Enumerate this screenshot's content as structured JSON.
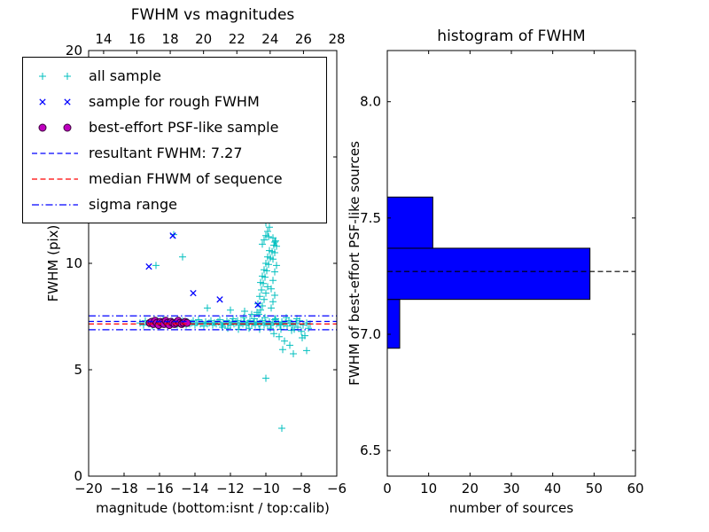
{
  "figure": {
    "background": "#ffffff"
  },
  "legend": {
    "entries": [
      {
        "label": "all sample",
        "marker": "plus",
        "color": "#00bfbf"
      },
      {
        "label": "sample for rough FWHM",
        "marker": "x",
        "color": "#0000ff"
      },
      {
        "label": "best-effort PSF-like sample",
        "marker": "circle",
        "color": "#bf00bf",
        "edge": "#3a003a"
      },
      {
        "label": "resultant FWHM: 7.27",
        "marker": "dashed-line",
        "color": "#0000ff"
      },
      {
        "label": "median FHWM of sequence",
        "marker": "dashed-line",
        "color": "#ff0000"
      },
      {
        "label": "sigma range",
        "marker": "dashdot-line",
        "color": "#0000ff"
      }
    ]
  },
  "chart_data": [
    {
      "type": "scatter",
      "title": "FWHM vs magnitudes",
      "xlabel": "magnitude (bottom:isnt / top:calib)",
      "ylabel": "FWHM (pix)",
      "xlim": [
        -20,
        -6
      ],
      "ylim": [
        0,
        20
      ],
      "xticks_bottom": {
        "values": [
          -20,
          -18,
          -16,
          -14,
          -12,
          -10,
          -8,
          -6
        ],
        "labels": [
          "−20",
          "−18",
          "−16",
          "−14",
          "−12",
          "−10",
          "−8",
          "−6"
        ]
      },
      "xticks_top": {
        "range": [
          13.1,
          28
        ],
        "values": [
          14,
          16,
          18,
          20,
          22,
          24,
          26,
          28
        ],
        "labels": [
          "14",
          "16",
          "18",
          "20",
          "22",
          "24",
          "26",
          "28"
        ]
      },
      "yticks": {
        "values": [
          0,
          5,
          10,
          15,
          20
        ],
        "labels": [
          "0",
          "5",
          "10",
          "15",
          "20"
        ]
      },
      "series": [
        {
          "name": "all sample",
          "marker": "plus",
          "color": "#00bfbf",
          "points": [
            [
              -17.1,
              7.2
            ],
            [
              -16.9,
              7.1
            ],
            [
              -16.8,
              7.3
            ],
            [
              -16.6,
              7.15
            ],
            [
              -16.5,
              7.25
            ],
            [
              -16.4,
              7.05
            ],
            [
              -16.2,
              7.2
            ],
            [
              -16.1,
              7.3
            ],
            [
              -16.0,
              7.1
            ],
            [
              -15.9,
              7.2
            ],
            [
              -15.8,
              7.35
            ],
            [
              -15.7,
              7.15
            ],
            [
              -15.6,
              7.25
            ],
            [
              -15.5,
              7.1
            ],
            [
              -15.4,
              7.2
            ],
            [
              -15.3,
              7.3
            ],
            [
              -15.2,
              7.15
            ],
            [
              -15.1,
              7.2
            ],
            [
              -15.0,
              7.1
            ],
            [
              -14.9,
              7.25
            ],
            [
              -14.8,
              7.15
            ],
            [
              -14.7,
              7.3
            ],
            [
              -14.6,
              7.2
            ],
            [
              -14.5,
              7.1
            ],
            [
              -14.4,
              7.25
            ],
            [
              -14.3,
              7.15
            ],
            [
              -14.2,
              7.2
            ],
            [
              -14.1,
              7.3
            ],
            [
              -14.0,
              7.1
            ],
            [
              -13.9,
              7.2
            ],
            [
              -13.8,
              7.35
            ],
            [
              -13.7,
              7.15
            ],
            [
              -13.6,
              7.2
            ],
            [
              -13.5,
              7.05
            ],
            [
              -13.4,
              7.25
            ],
            [
              -13.3,
              7.15
            ],
            [
              -13.2,
              7.2
            ],
            [
              -13.1,
              7.3
            ],
            [
              -13.0,
              7.1
            ],
            [
              -12.9,
              7.2
            ],
            [
              -12.8,
              7.15
            ],
            [
              -12.7,
              7.25
            ],
            [
              -12.6,
              7.35
            ],
            [
              -12.5,
              7.1
            ],
            [
              -12.4,
              7.2
            ],
            [
              -12.3,
              7.15
            ],
            [
              -12.2,
              7.3
            ],
            [
              -12.1,
              7.2
            ],
            [
              -12.0,
              7.1
            ],
            [
              -11.9,
              7.25
            ],
            [
              -11.8,
              7.15
            ],
            [
              -11.7,
              7.2
            ],
            [
              -11.6,
              7.3
            ],
            [
              -11.5,
              7.1
            ],
            [
              -11.4,
              7.2
            ],
            [
              -11.3,
              7.15
            ],
            [
              -11.2,
              7.25
            ],
            [
              -11.1,
              7.1
            ],
            [
              -11.0,
              7.2
            ],
            [
              -10.9,
              7.3
            ],
            [
              -10.8,
              7.15
            ],
            [
              -10.7,
              7.2
            ],
            [
              -10.6,
              7.1
            ],
            [
              -10.5,
              7.25
            ],
            [
              -10.4,
              7.15
            ],
            [
              -10.3,
              7.2
            ],
            [
              -10.2,
              7.3
            ],
            [
              -10.1,
              7.1
            ],
            [
              -10.0,
              7.2
            ],
            [
              -9.9,
              7.15
            ],
            [
              -9.8,
              7.25
            ],
            [
              -9.7,
              7.1
            ],
            [
              -9.6,
              7.2
            ],
            [
              -9.5,
              7.35
            ],
            [
              -9.4,
              7.15
            ],
            [
              -9.3,
              7.2
            ],
            [
              -9.2,
              7.1
            ],
            [
              -9.1,
              7.25
            ],
            [
              -9.0,
              7.15
            ],
            [
              -8.9,
              7.2
            ],
            [
              -8.8,
              7.05
            ],
            [
              -8.7,
              7.3
            ],
            [
              -8.6,
              7.2
            ],
            [
              -8.5,
              7.1
            ],
            [
              -8.4,
              6.9
            ],
            [
              -8.3,
              7.2
            ],
            [
              -8.2,
              7.0
            ],
            [
              -8.1,
              7.3
            ],
            [
              -8.0,
              6.8
            ],
            [
              -7.9,
              7.1
            ],
            [
              -7.8,
              6.6
            ],
            [
              -7.7,
              7.2
            ],
            [
              -7.6,
              6.95
            ],
            [
              -7.5,
              7.15
            ],
            [
              -12.45,
              7.0
            ],
            [
              -12.15,
              6.95
            ],
            [
              -11.85,
              7.4
            ],
            [
              -11.55,
              6.9
            ],
            [
              -11.25,
              7.45
            ],
            [
              -10.95,
              6.95
            ],
            [
              -10.65,
              7.4
            ],
            [
              -10.35,
              6.9
            ],
            [
              -10.05,
              7.45
            ],
            [
              -9.75,
              6.95
            ],
            [
              -9.45,
              7.4
            ],
            [
              -9.15,
              6.9
            ],
            [
              -8.85,
              7.45
            ],
            [
              -8.55,
              6.85
            ],
            [
              -8.25,
              7.4
            ],
            [
              -7.95,
              6.5
            ],
            [
              -9.55,
              6.7
            ],
            [
              -9.25,
              6.55
            ],
            [
              -8.95,
              6.35
            ],
            [
              -8.65,
              6.15
            ],
            [
              -9.05,
              5.95
            ],
            [
              -8.45,
              5.75
            ],
            [
              -10.0,
              4.6
            ],
            [
              -9.1,
              2.25
            ],
            [
              -7.7,
              5.9
            ],
            [
              -10.4,
              7.6
            ],
            [
              -10.3,
              7.8
            ],
            [
              -10.2,
              8.0
            ],
            [
              -10.1,
              8.3
            ],
            [
              -10.0,
              8.6
            ],
            [
              -9.9,
              8.9
            ],
            [
              -10.3,
              9.1
            ],
            [
              -10.2,
              9.4
            ],
            [
              -10.1,
              9.7
            ],
            [
              -10.0,
              10.0
            ],
            [
              -9.9,
              10.3
            ],
            [
              -9.8,
              10.6
            ],
            [
              -10.2,
              10.9
            ],
            [
              -10.1,
              11.1
            ],
            [
              -10.0,
              11.3
            ],
            [
              -9.9,
              11.5
            ],
            [
              -9.8,
              11.7
            ],
            [
              -10.0,
              11.9
            ],
            [
              -9.7,
              7.9
            ],
            [
              -9.6,
              8.2
            ],
            [
              -9.5,
              8.5
            ],
            [
              -9.7,
              8.8
            ],
            [
              -9.6,
              9.2
            ],
            [
              -9.5,
              9.6
            ],
            [
              -9.4,
              9.9
            ],
            [
              -9.6,
              10.2
            ],
            [
              -9.5,
              10.5
            ],
            [
              -9.4,
              10.8
            ],
            [
              -9.5,
              11.0
            ],
            [
              -9.6,
              11.2
            ],
            [
              -10.5,
              7.7
            ],
            [
              -10.45,
              8.1
            ],
            [
              -10.35,
              8.45
            ],
            [
              -10.25,
              8.75
            ],
            [
              -10.15,
              9.05
            ],
            [
              -10.05,
              9.35
            ],
            [
              -9.95,
              9.65
            ],
            [
              -9.85,
              9.95
            ],
            [
              -9.75,
              10.25
            ],
            [
              -9.65,
              10.55
            ],
            [
              -9.55,
              10.85
            ],
            [
              -9.45,
              11.05
            ],
            [
              -9.9,
              12.1
            ],
            [
              -10.0,
              12.4
            ],
            [
              -9.85,
              11.25
            ],
            [
              -16.2,
              9.9
            ],
            [
              -15.2,
              11.35
            ],
            [
              -14.7,
              10.3
            ],
            [
              -13.3,
              7.9
            ],
            [
              -12.0,
              7.8
            ],
            [
              -11.2,
              7.75
            ],
            [
              -10.8,
              7.6
            ]
          ]
        },
        {
          "name": "sample for rough FWHM",
          "marker": "x",
          "color": "#0000ff",
          "points": [
            [
              -16.6,
              9.85
            ],
            [
              -15.25,
              11.3
            ],
            [
              -14.1,
              8.6
            ],
            [
              -12.6,
              8.3
            ],
            [
              -10.45,
              8.05
            ]
          ]
        },
        {
          "name": "best-effort PSF-like sample",
          "marker": "circle",
          "color": "#bf00bf",
          "edge": "#3a003a",
          "points": [
            [
              -16.55,
              7.2
            ],
            [
              -16.45,
              7.25
            ],
            [
              -16.35,
              7.15
            ],
            [
              -16.25,
              7.3
            ],
            [
              -16.15,
              7.2
            ],
            [
              -16.05,
              7.1
            ],
            [
              -15.95,
              7.25
            ],
            [
              -15.85,
              7.2
            ],
            [
              -15.75,
              7.15
            ],
            [
              -15.65,
              7.3
            ],
            [
              -15.55,
              7.2
            ],
            [
              -15.45,
              7.1
            ],
            [
              -15.35,
              7.25
            ],
            [
              -15.25,
              7.2
            ],
            [
              -15.15,
              7.15
            ],
            [
              -15.05,
              7.2
            ],
            [
              -14.95,
              7.3
            ],
            [
              -14.85,
              7.2
            ],
            [
              -14.75,
              7.15
            ],
            [
              -14.65,
              7.2
            ],
            [
              -14.55,
              7.25
            ],
            [
              -14.45,
              7.2
            ]
          ]
        }
      ],
      "hlines": [
        {
          "name": "resultant FWHM",
          "y": 7.27,
          "style": "dashed",
          "color": "#0000ff"
        },
        {
          "name": "median FWHM of sequence",
          "y": 7.15,
          "style": "dashed",
          "color": "#ff0000"
        },
        {
          "name": "sigma range upper",
          "y": 7.53,
          "style": "dashdot",
          "color": "#0000ff"
        },
        {
          "name": "sigma range lower",
          "y": 6.88,
          "style": "dashdot",
          "color": "#0000ff"
        }
      ]
    },
    {
      "type": "bar",
      "orientation": "horizontal",
      "title": "histogram of FWHM",
      "xlabel": "number of sources",
      "ylabel": "FWHM of best-effort PSF-like sources",
      "xlim": [
        0,
        60
      ],
      "ylim": [
        6.39,
        8.22
      ],
      "xticks": {
        "values": [
          0,
          10,
          20,
          30,
          40,
          50,
          60
        ],
        "labels": [
          "0",
          "10",
          "20",
          "30",
          "40",
          "50",
          "60"
        ]
      },
      "yticks": {
        "values": [
          6.5,
          7.0,
          7.5,
          8.0
        ],
        "labels": [
          "6.5",
          "7.0",
          "7.5",
          "8.0"
        ]
      },
      "bars": [
        {
          "from": 6.94,
          "to": 7.15,
          "count": 3
        },
        {
          "from": 7.15,
          "to": 7.37,
          "count": 49
        },
        {
          "from": 7.37,
          "to": 7.59,
          "count": 11
        }
      ],
      "bar_color": "#0000ff",
      "hline": {
        "y": 7.27,
        "style": "dashed",
        "color": "#000000"
      }
    }
  ]
}
